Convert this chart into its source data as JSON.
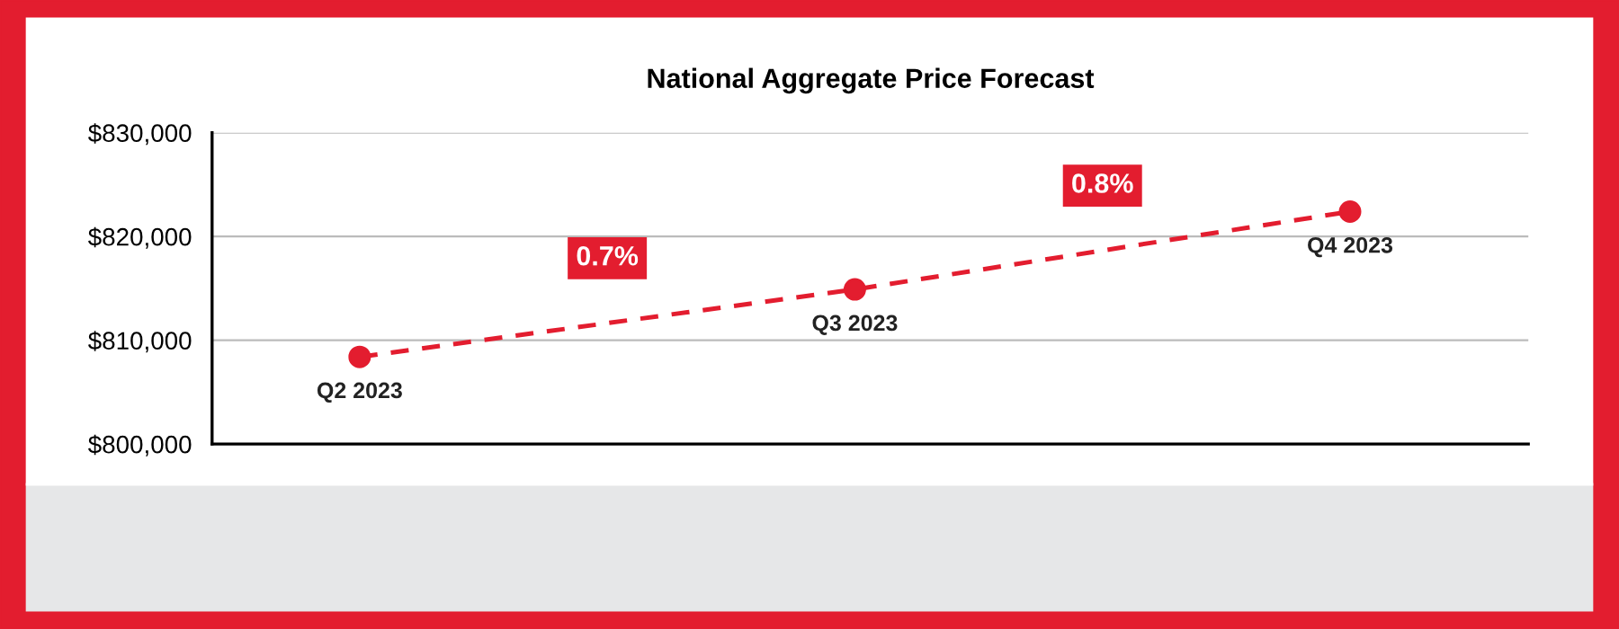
{
  "chart_data": {
    "type": "line",
    "title": "National Aggregate Price Forecast",
    "categories": [
      "Q2 2023",
      "Q3 2023",
      "Q4 2023"
    ],
    "series": [
      {
        "color": "#e31d2f",
        "values": [
          808400,
          814900,
          822400
        ]
      }
    ],
    "ylim": [
      800000,
      830000
    ],
    "yticks": [
      {
        "value": 800000,
        "label": "$800,000"
      },
      {
        "value": 810000,
        "label": "$810,000"
      },
      {
        "value": 820000,
        "label": "$820,000"
      },
      {
        "value": 830000,
        "label": "$830,000"
      }
    ],
    "tick_labels": "y",
    "grid": "y",
    "marker": "circle",
    "line_style": "dashed",
    "annotations": [
      "0.7%",
      "0.8%"
    ]
  }
}
